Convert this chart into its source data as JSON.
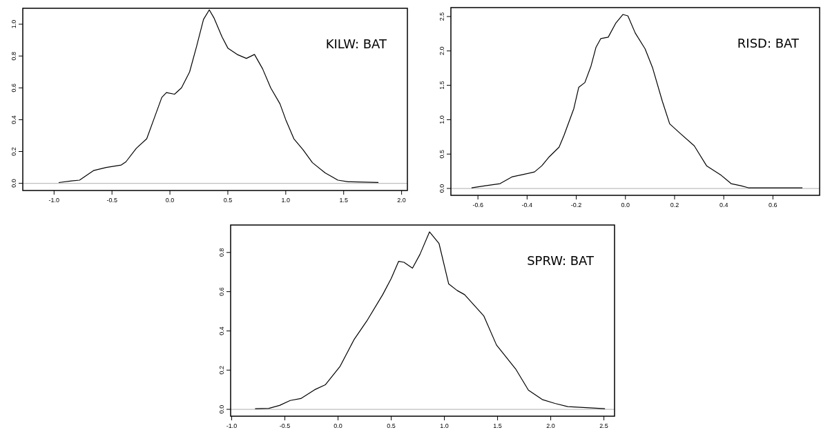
{
  "chart_data": [
    {
      "type": "line",
      "annotations": [
        "KILW: BAT"
      ],
      "grid": false,
      "xlim": [
        -1.27,
        2.05
      ],
      "ylim": [
        -0.045,
        1.1
      ],
      "xticks": [
        {
          "value": -1,
          "label": "-1.0"
        },
        -0.5,
        {
          "value": 0,
          "label": "0.0"
        },
        0.5,
        {
          "value": 1,
          "label": "1.0"
        },
        1.5,
        {
          "value": 2,
          "label": "2.0"
        }
      ],
      "yticks": [
        {
          "value": 0,
          "label": "0.0"
        },
        0.2,
        0.4,
        0.6,
        0.8,
        {
          "value": 1,
          "label": "1.0"
        }
      ],
      "ref_lines": [
        {
          "axis": "y",
          "value": 0,
          "color": "#bebebe"
        }
      ],
      "series": [
        {
          "color": "#000000",
          "x": [
            -0.96,
            -0.85,
            -0.78,
            -0.66,
            -0.55,
            -0.42,
            -0.38,
            -0.29,
            -0.2,
            -0.14,
            -0.07,
            -0.03,
            0.04,
            0.1,
            0.17,
            0.23,
            0.29,
            0.34,
            0.38,
            0.45,
            0.5,
            0.58,
            0.66,
            0.73,
            0.8,
            0.87,
            0.95,
            1.0,
            1.07,
            1.15,
            1.23,
            1.34,
            1.45,
            1.54,
            1.8
          ],
          "values": [
            0.005,
            0.015,
            0.02,
            0.08,
            0.1,
            0.115,
            0.135,
            0.22,
            0.28,
            0.4,
            0.54,
            0.57,
            0.56,
            0.6,
            0.7,
            0.86,
            1.03,
            1.09,
            1.04,
            0.92,
            0.85,
            0.81,
            0.785,
            0.81,
            0.72,
            0.6,
            0.5,
            0.4,
            0.28,
            0.21,
            0.13,
            0.066,
            0.02,
            0.01,
            0.005
          ]
        }
      ]
    },
    {
      "type": "line",
      "annotations": [
        "RISD: BAT"
      ],
      "grid": false,
      "xlim": [
        -0.71,
        0.79
      ],
      "ylim": [
        -0.1,
        2.63
      ],
      "xticks": [
        -0.6,
        -0.4,
        -0.2,
        {
          "value": 0,
          "label": "0.0"
        },
        0.2,
        0.4,
        0.6
      ],
      "yticks": [
        {
          "value": 0,
          "label": "0.0"
        },
        0.5,
        {
          "value": 1,
          "label": "1.0"
        },
        1.5,
        {
          "value": 2,
          "label": "2.0"
        },
        2.5
      ],
      "ref_lines": [
        {
          "axis": "y",
          "value": 0,
          "color": "#bebebe"
        }
      ],
      "series": [
        {
          "color": "#000000",
          "x": [
            -0.626,
            -0.57,
            -0.51,
            -0.46,
            -0.42,
            -0.37,
            -0.34,
            -0.31,
            -0.27,
            -0.25,
            -0.21,
            -0.19,
            -0.165,
            -0.14,
            -0.12,
            -0.1,
            -0.07,
            -0.04,
            -0.01,
            0.01,
            0.04,
            0.08,
            0.11,
            0.15,
            0.18,
            0.22,
            0.28,
            0.33,
            0.39,
            0.43,
            0.47,
            0.5,
            0.72
          ],
          "values": [
            0.01,
            0.04,
            0.07,
            0.17,
            0.2,
            0.24,
            0.33,
            0.46,
            0.6,
            0.77,
            1.16,
            1.47,
            1.54,
            1.78,
            2.05,
            2.18,
            2.2,
            2.4,
            2.53,
            2.51,
            2.26,
            2.03,
            1.76,
            1.27,
            0.94,
            0.81,
            0.62,
            0.33,
            0.19,
            0.07,
            0.04,
            0.01,
            0.01
          ]
        }
      ]
    },
    {
      "type": "line",
      "annotations": [
        "SPRW: BAT"
      ],
      "grid": false,
      "xlim": [
        -1.01,
        2.6
      ],
      "ylim": [
        -0.035,
        0.94
      ],
      "xticks": [
        {
          "value": -1,
          "label": "-1.0"
        },
        -0.5,
        {
          "value": 0,
          "label": "0.0"
        },
        0.5,
        {
          "value": 1,
          "label": "1.0"
        },
        1.5,
        {
          "value": 2,
          "label": "2.0"
        },
        2.5
      ],
      "yticks": [
        {
          "value": 0,
          "label": "0.0"
        },
        0.2,
        0.4,
        0.6,
        0.8
      ],
      "ref_lines": [
        {
          "axis": "y",
          "value": 0,
          "color": "#bebebe"
        }
      ],
      "series": [
        {
          "color": "#000000",
          "x": [
            -0.78,
            -0.65,
            -0.55,
            -0.45,
            -0.35,
            -0.22,
            -0.12,
            0.02,
            0.15,
            0.27,
            0.42,
            0.5,
            0.57,
            0.62,
            0.7,
            0.77,
            0.86,
            0.95,
            1.04,
            1.12,
            1.19,
            1.37,
            1.49,
            1.67,
            1.79,
            1.92,
            2.04,
            2.16,
            2.51
          ],
          "values": [
            0.003,
            0.005,
            0.02,
            0.045,
            0.055,
            0.1,
            0.125,
            0.22,
            0.355,
            0.45,
            0.585,
            0.667,
            0.755,
            0.75,
            0.72,
            0.79,
            0.905,
            0.845,
            0.64,
            0.606,
            0.585,
            0.477,
            0.328,
            0.206,
            0.098,
            0.05,
            0.03,
            0.014,
            0.003
          ]
        }
      ]
    }
  ]
}
